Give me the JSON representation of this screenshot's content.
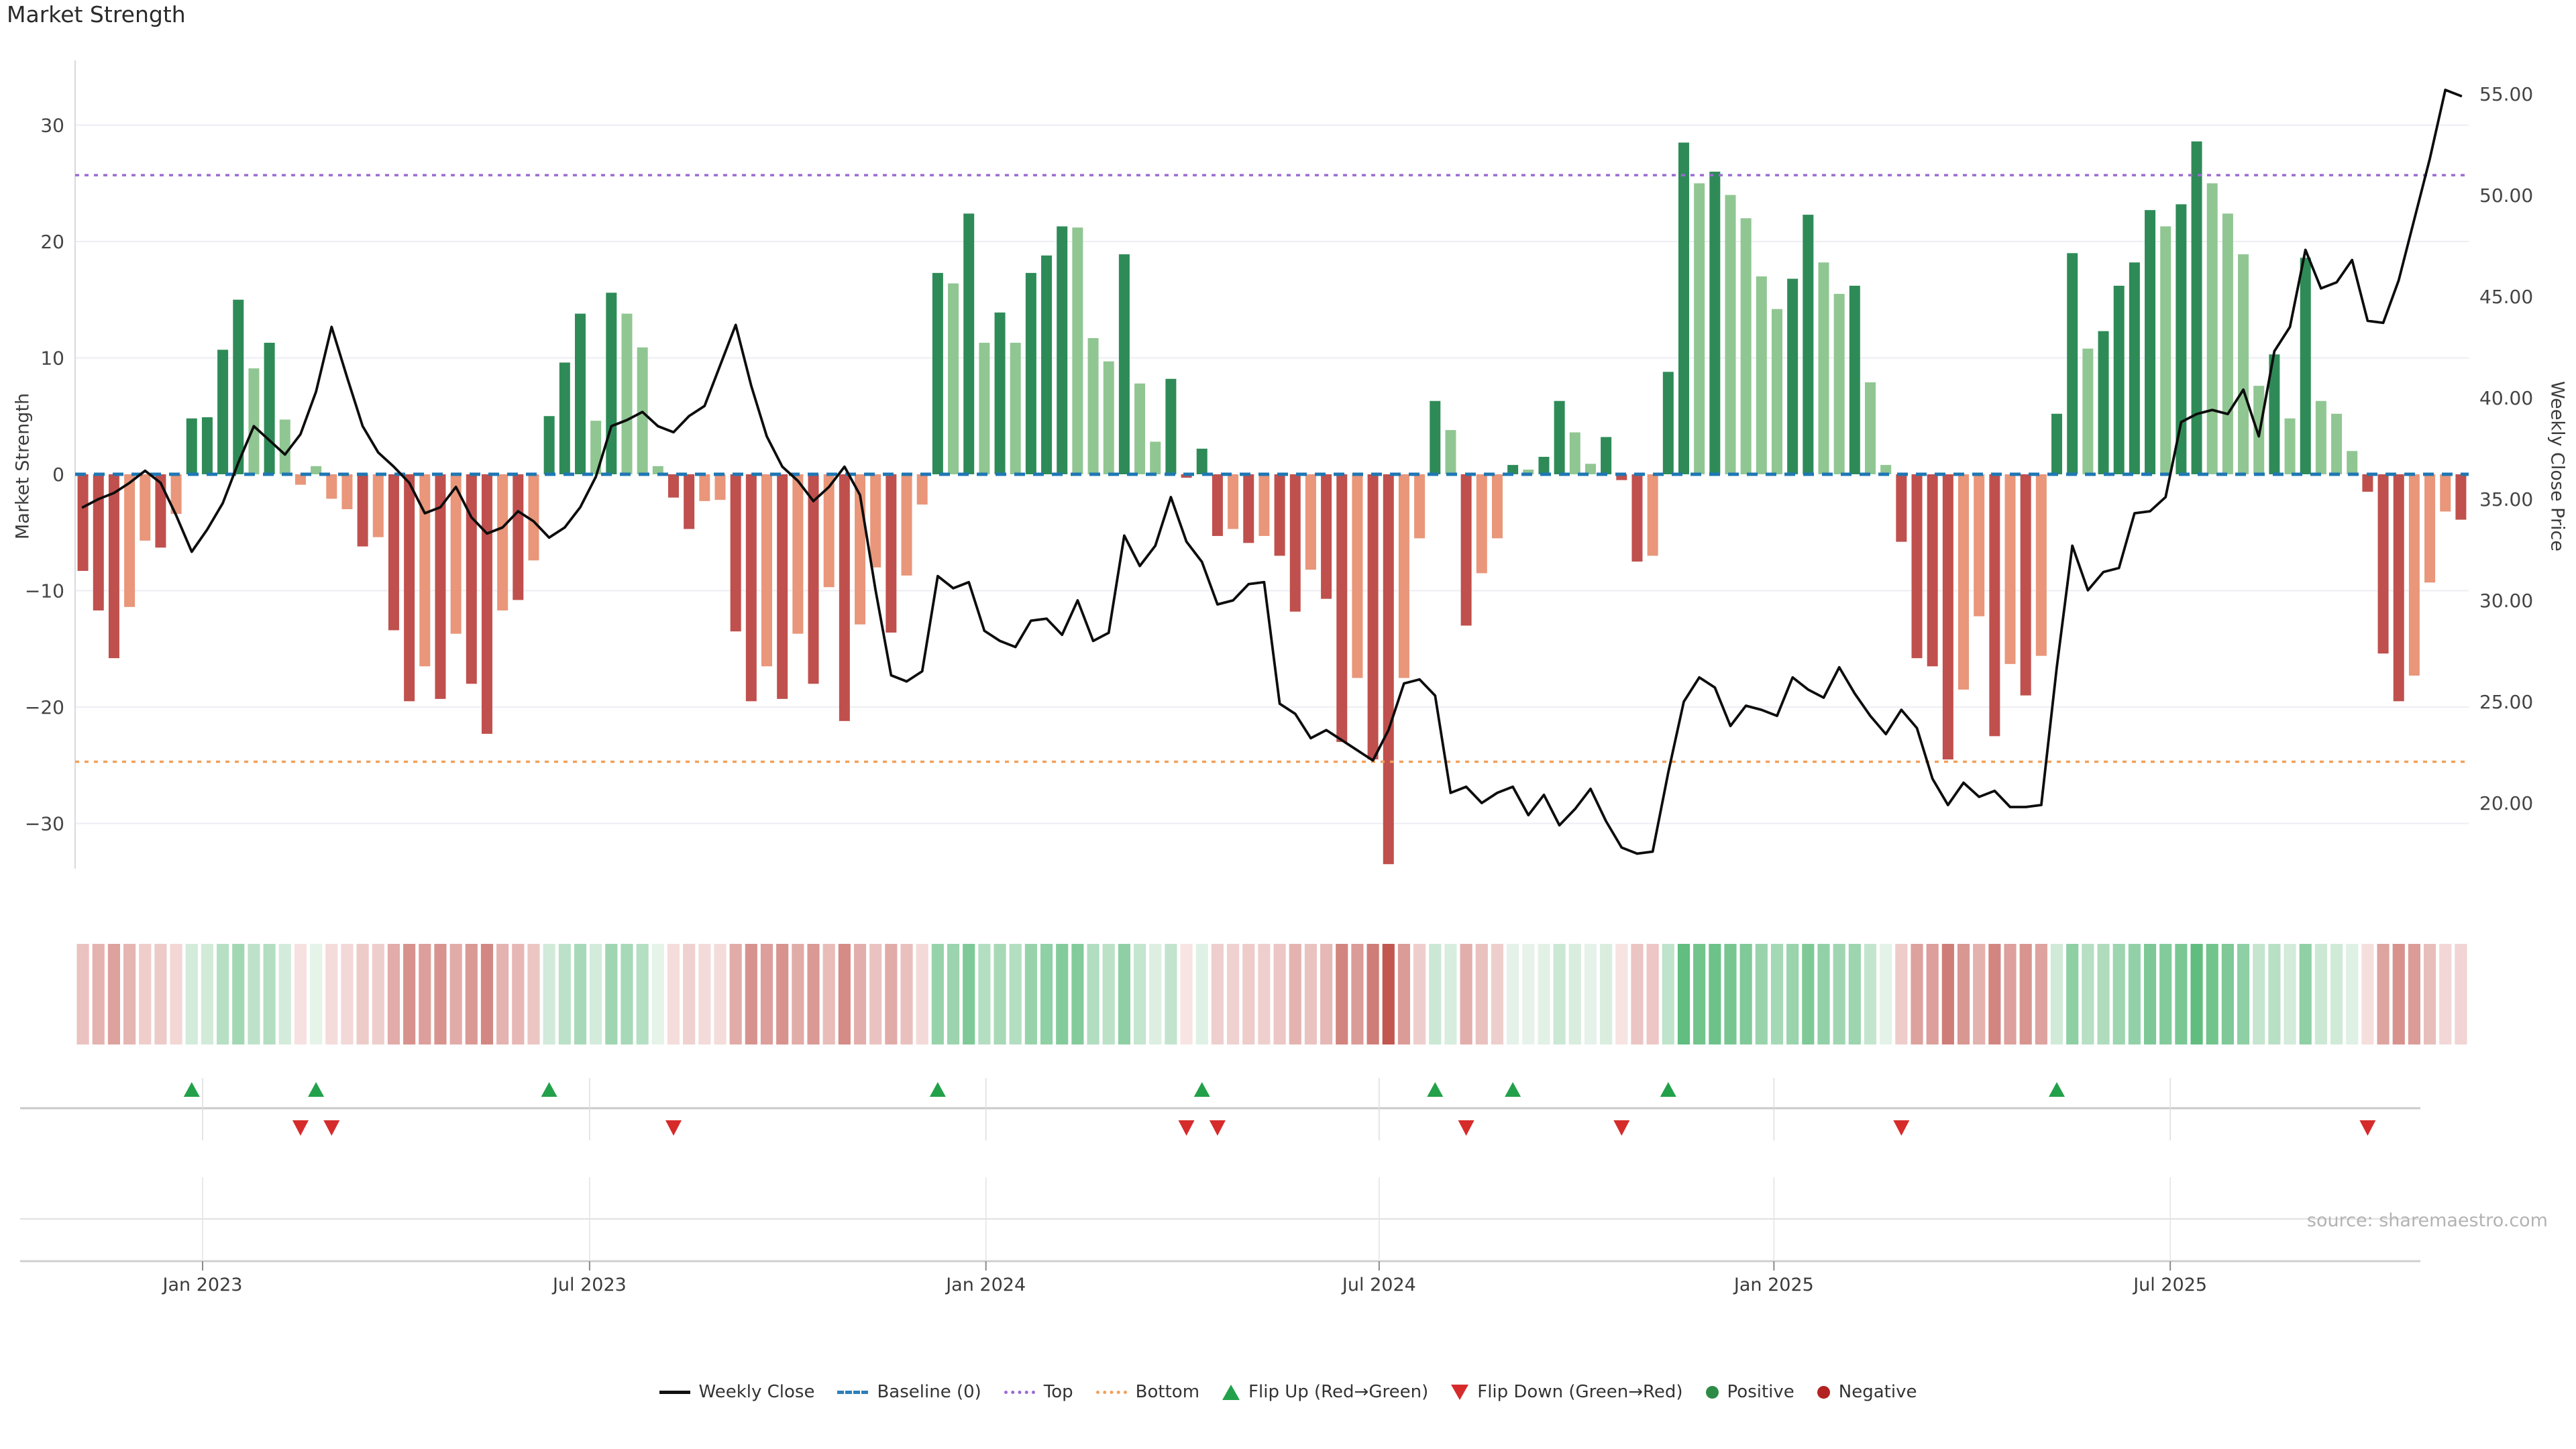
{
  "title": "Market Strength",
  "source": "source: sharemaestro.com",
  "axes": {
    "left_label": "Market Strength",
    "right_label": "Weekly Close Price",
    "left_tick_values": [
      30,
      20,
      10,
      0,
      -10,
      -20,
      -30
    ],
    "left_tick_labels": [
      "30",
      "20",
      "10",
      "0",
      "−10",
      "−20",
      "−30"
    ],
    "right_tick_values": [
      55,
      50,
      45,
      40,
      35,
      30,
      25,
      20
    ],
    "right_tick_labels": [
      "55.00",
      "50.00",
      "45.00",
      "40.00",
      "35.00",
      "30.00",
      "25.00",
      "20.00"
    ],
    "x_tick_weeks": [
      8.2,
      33.1,
      58.6,
      83.9,
      109.3,
      134.8
    ],
    "x_tick_labels": [
      "Jan 2023",
      "Jul 2023",
      "Jan 2024",
      "Jul 2024",
      "Jan 2025",
      "Jul 2025"
    ]
  },
  "legend": {
    "items": [
      {
        "label": "Weekly Close",
        "marker": "line"
      },
      {
        "label": "Baseline (0)",
        "marker": "dash"
      },
      {
        "label": "Top",
        "marker": "dotp"
      },
      {
        "label": "Bottom",
        "marker": "doto"
      },
      {
        "label": "Flip Up (Red→Green)",
        "marker": "tri-up"
      },
      {
        "label": "Flip Down (Green→Red)",
        "marker": "tri-down"
      },
      {
        "label": "Positive",
        "marker": "dot-pos"
      },
      {
        "label": "Negative",
        "marker": "dot-neg"
      }
    ]
  },
  "colors": {
    "bar_pos_dark": "#2e8b57",
    "bar_pos_light": "#90c692",
    "bar_neg_dark": "#c0504d",
    "bar_neg_light": "#e9967a",
    "price_line": "#0d0d0d",
    "baseline": "#1f77b4",
    "top_line": "#9b6bd3",
    "bottom_line": "#f2a05a",
    "flip_up": "#22a14a",
    "flip_down": "#d62b2b",
    "grid": "#eceef4",
    "spine": "#d9d9e0",
    "panel_line": "#c9c9c9",
    "panel_grid": "#dddddd",
    "axis_text": "#454545",
    "tick_mark": "#8a8a8a"
  },
  "chart_data": {
    "type": [
      "bar",
      "line",
      "heatmap",
      "scatter"
    ],
    "x_unit": "week",
    "n_weeks": 154,
    "title": "Market Strength",
    "ylabel_left": "Market Strength",
    "ylabel_right": "Weekly Close Price",
    "left_ylim": [
      -36,
      33
    ],
    "right_ylim": [
      17.2,
      56.6
    ],
    "baseline": 0,
    "top_threshold": 25.7,
    "bottom_threshold": -24.7,
    "grid": true,
    "legend_position": "bottom-center",
    "strength": [
      -8.3,
      -11.7,
      -15.8,
      -11.4,
      -5.7,
      -6.3,
      -3.4,
      4.8,
      4.9,
      10.7,
      15.0,
      9.1,
      11.3,
      4.7,
      -0.9,
      0.7,
      -2.1,
      -3.0,
      -6.2,
      -5.4,
      -13.4,
      -19.5,
      -16.5,
      -19.3,
      -13.7,
      -18.0,
      -22.3,
      -11.7,
      -10.8,
      -7.4,
      5.0,
      9.6,
      13.8,
      4.6,
      15.6,
      13.8,
      10.9,
      0.7,
      -2.0,
      -4.7,
      -2.3,
      -2.2,
      -13.5,
      -19.5,
      -16.5,
      -19.3,
      -13.7,
      -18.0,
      -9.7,
      -21.2,
      -12.9,
      -8.0,
      -13.6,
      -8.7,
      -2.6,
      17.3,
      16.4,
      22.4,
      11.3,
      13.9,
      11.3,
      17.3,
      18.8,
      21.3,
      21.2,
      11.7,
      9.7,
      18.9,
      7.8,
      2.8,
      8.2,
      -0.3,
      2.2,
      -5.3,
      -4.7,
      -5.9,
      -5.3,
      -7.0,
      -11.8,
      -8.2,
      -10.7,
      -23.0,
      -17.5,
      -24.5,
      -33.5,
      -17.5,
      -5.5,
      6.3,
      3.8,
      -13.0,
      -8.5,
      -5.5,
      0.8,
      0.4,
      1.5,
      6.3,
      3.6,
      0.9,
      3.2,
      -0.5,
      -7.5,
      -7.0,
      8.8,
      28.5,
      25.0,
      26.0,
      24.0,
      22.0,
      17.0,
      14.2,
      16.8,
      22.3,
      18.2,
      15.5,
      16.2,
      7.9,
      0.8,
      -5.8,
      -15.8,
      -16.5,
      -24.5,
      -18.5,
      -12.2,
      -22.5,
      -16.3,
      -19.0,
      -15.6,
      5.2,
      19.0,
      10.8,
      12.3,
      16.2,
      18.2,
      22.7,
      21.3,
      23.2,
      28.6,
      25.0,
      22.4,
      18.9,
      7.6,
      10.3,
      4.8,
      18.6,
      6.3,
      5.2,
      2.0,
      -1.5,
      -15.4,
      -19.5,
      -17.3,
      -9.3,
      -3.2,
      -3.9
    ],
    "strength_shade": "dddlldlddddldllllldlddldlddldldddldlllddllddldldldlldlldldldldddllldllddddldlddlddlddlldldlldlddlldddlddldllllddlldllddddlldldlddlddddlddlllldldllldddllld",
    "weekly_close": [
      34.6,
      35.0,
      35.3,
      35.8,
      36.4,
      35.8,
      34.2,
      32.4,
      33.5,
      34.8,
      36.8,
      38.6,
      37.9,
      37.2,
      38.2,
      40.3,
      43.5,
      41.0,
      38.6,
      37.3,
      36.6,
      35.8,
      34.3,
      34.6,
      35.6,
      34.1,
      33.3,
      33.6,
      34.4,
      33.9,
      33.1,
      33.6,
      34.6,
      36.1,
      38.6,
      38.9,
      39.3,
      38.6,
      38.3,
      39.1,
      39.6,
      41.6,
      43.6,
      40.6,
      38.1,
      36.6,
      35.9,
      34.9,
      35.6,
      36.6,
      35.2,
      30.5,
      26.3,
      26.0,
      26.5,
      31.2,
      30.6,
      30.9,
      28.5,
      28.0,
      27.7,
      29.0,
      29.1,
      28.3,
      30.0,
      28.0,
      28.4,
      33.2,
      31.7,
      32.7,
      35.1,
      32.9,
      31.9,
      29.8,
      30.0,
      30.8,
      30.9,
      24.9,
      24.4,
      23.2,
      23.6,
      23.1,
      22.6,
      22.1,
      23.6,
      25.9,
      26.1,
      25.3,
      20.5,
      20.8,
      20.0,
      20.5,
      20.8,
      19.4,
      20.4,
      18.9,
      19.7,
      20.7,
      19.1,
      17.8,
      17.5,
      17.6,
      21.5,
      25.0,
      26.2,
      25.7,
      23.8,
      24.8,
      24.6,
      24.3,
      26.2,
      25.6,
      25.2,
      26.7,
      25.4,
      24.3,
      23.4,
      24.6,
      23.7,
      21.2,
      19.9,
      21.0,
      20.3,
      20.6,
      19.8,
      19.8,
      19.9,
      26.7,
      32.7,
      30.5,
      31.4,
      31.6,
      34.3,
      34.4,
      35.1,
      38.8,
      39.2,
      39.4,
      39.2,
      40.4,
      38.1,
      42.3,
      43.5,
      47.3,
      45.4,
      45.7,
      46.8,
      43.8,
      43.7,
      45.8,
      48.8,
      51.8,
      55.2,
      54.9
    ],
    "flip_up_weeks": [
      7,
      15,
      30,
      55,
      72,
      87,
      92,
      102,
      127
    ],
    "flip_down_weeks": [
      14,
      16,
      38,
      71,
      73,
      89,
      99,
      117,
      147
    ]
  }
}
